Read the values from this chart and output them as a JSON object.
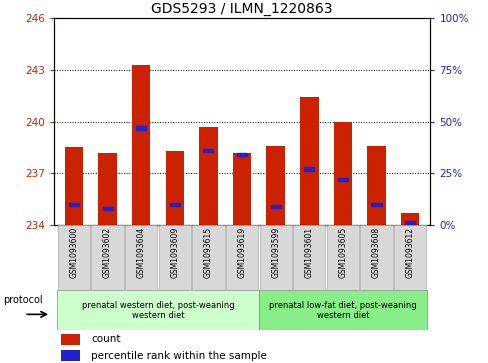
{
  "title": "GDS5293 / ILMN_1220863",
  "samples": [
    "GSM1093600",
    "GSM1093602",
    "GSM1093604",
    "GSM1093609",
    "GSM1093615",
    "GSM1093619",
    "GSM1093599",
    "GSM1093601",
    "GSM1093605",
    "GSM1093608",
    "GSM1093612"
  ],
  "bar_tops": [
    238.5,
    238.2,
    243.3,
    238.3,
    239.7,
    238.2,
    238.6,
    241.4,
    240.0,
    238.6,
    234.7
  ],
  "bar_base": 234.0,
  "percentile_ranks": [
    10,
    8,
    47,
    10,
    36,
    34,
    9,
    27,
    22,
    10,
    1
  ],
  "ylim_left": [
    234,
    246
  ],
  "ylim_right": [
    0,
    100
  ],
  "yticks_left": [
    234,
    237,
    240,
    243,
    246
  ],
  "yticks_right": [
    0,
    25,
    50,
    75,
    100
  ],
  "group1_label": "prenatal western diet, post-weaning\nwestern diet",
  "group2_label": "prenatal low-fat diet, post-weaning\nwestern diet",
  "group1_indices": [
    0,
    1,
    2,
    3,
    4,
    5
  ],
  "group2_indices": [
    6,
    7,
    8,
    9,
    10
  ],
  "protocol_label": "protocol",
  "legend_count": "count",
  "legend_percentile": "percentile rank within the sample",
  "bar_color": "#cc2200",
  "percentile_color": "#2222cc",
  "group1_bg": "#ccffcc",
  "group2_bg": "#88ee88",
  "tick_bg": "#d8d8d8",
  "ax_bg": "#ffffff",
  "left_tick_color": "#cc2200",
  "right_tick_color": "#2222cc",
  "bar_width": 0.55
}
